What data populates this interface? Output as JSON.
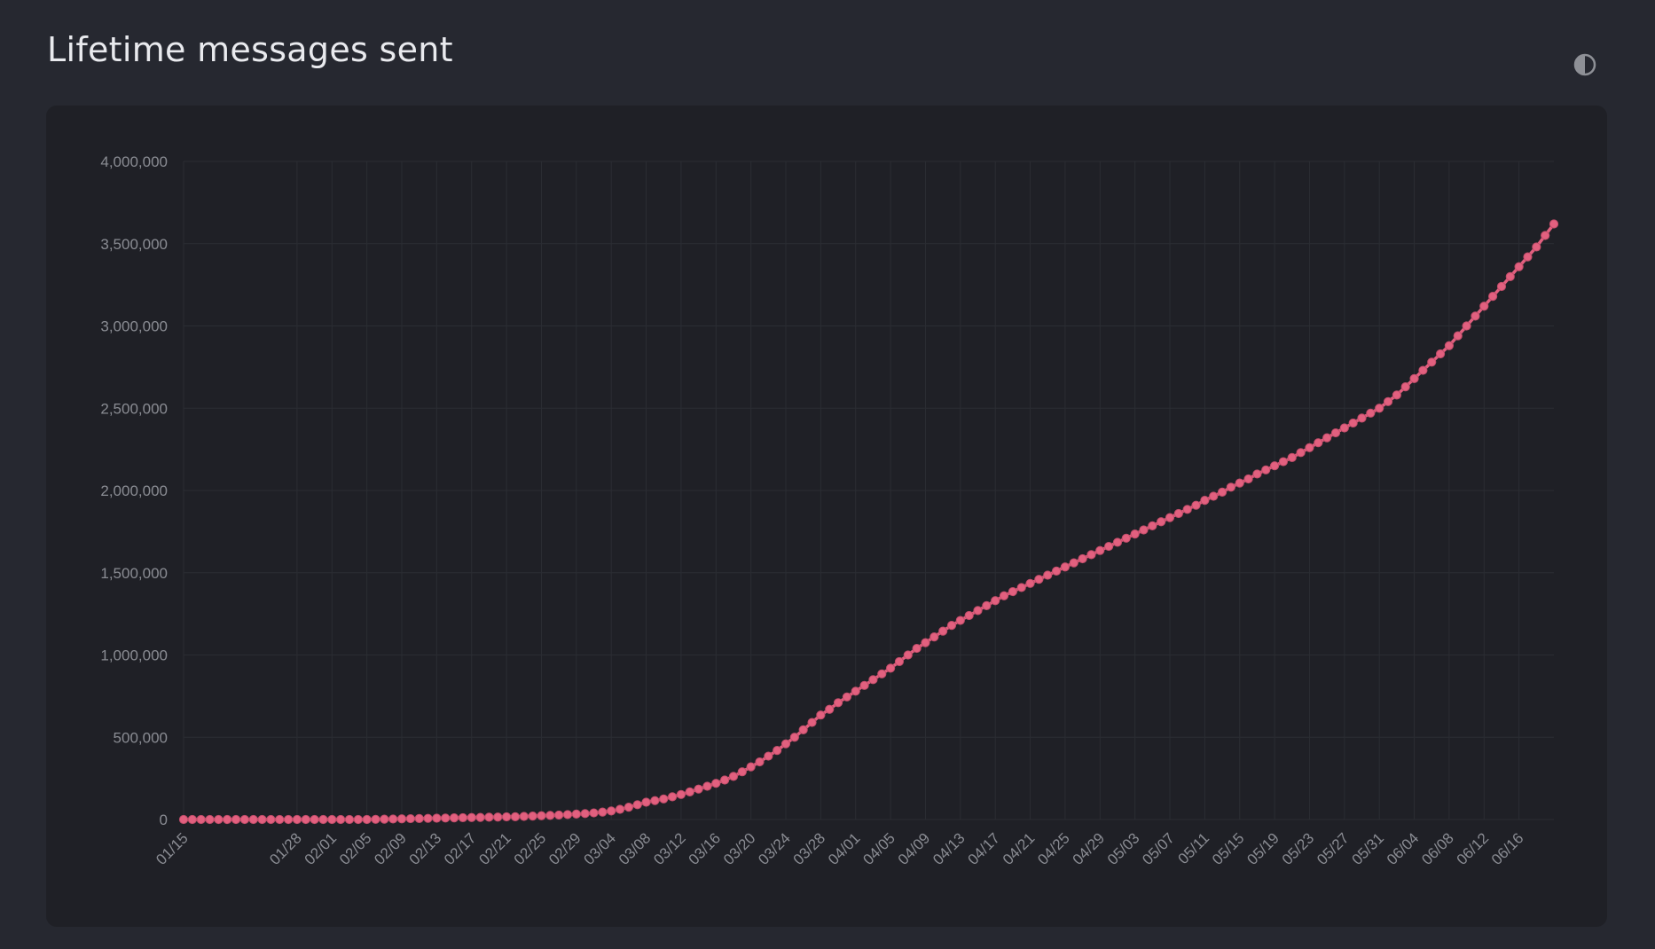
{
  "page": {
    "title": "Lifetime messages sent"
  },
  "theme_toggle": {
    "icon": "contrast-icon"
  },
  "colors": {
    "background": "#262830",
    "panel": "#1f2026",
    "series": "#e2607f",
    "grid": "#2b2d33",
    "tick_text": "#8a8c93",
    "title": "#e9eaee"
  },
  "chart_data": {
    "type": "line",
    "title": "Lifetime messages sent",
    "xlabel": "",
    "ylabel": "",
    "ylim": [
      0,
      4000000
    ],
    "y_ticks": [
      0,
      500000,
      1000000,
      1500000,
      2000000,
      2500000,
      3000000,
      3500000,
      4000000
    ],
    "y_tick_labels": [
      "0",
      "500,000",
      "1,000,000",
      "1,500,000",
      "2,000,000",
      "2,500,000",
      "3,000,000",
      "3,500,000",
      "4,000,000"
    ],
    "grid": true,
    "legend": "none",
    "x_dates": [
      "01/15",
      "01/16",
      "01/17",
      "01/18",
      "01/19",
      "01/20",
      "01/21",
      "01/22",
      "01/23",
      "01/24",
      "01/25",
      "01/26",
      "01/27",
      "01/28",
      "01/29",
      "01/30",
      "01/31",
      "02/01",
      "02/02",
      "02/03",
      "02/04",
      "02/05",
      "02/06",
      "02/07",
      "02/08",
      "02/09",
      "02/10",
      "02/11",
      "02/12",
      "02/13",
      "02/14",
      "02/15",
      "02/16",
      "02/17",
      "02/18",
      "02/19",
      "02/20",
      "02/21",
      "02/22",
      "02/23",
      "02/24",
      "02/25",
      "02/26",
      "02/27",
      "02/28",
      "02/29",
      "03/01",
      "03/02",
      "03/03",
      "03/04",
      "03/05",
      "03/06",
      "03/07",
      "03/08",
      "03/09",
      "03/10",
      "03/11",
      "03/12",
      "03/13",
      "03/14",
      "03/15",
      "03/16",
      "03/17",
      "03/18",
      "03/19",
      "03/20",
      "03/21",
      "03/22",
      "03/23",
      "03/24",
      "03/25",
      "03/26",
      "03/27",
      "03/28",
      "03/29",
      "03/30",
      "03/31",
      "04/01",
      "04/02",
      "04/03",
      "04/04",
      "04/05",
      "04/06",
      "04/07",
      "04/08",
      "04/09",
      "04/10",
      "04/11",
      "04/12",
      "04/13",
      "04/14",
      "04/15",
      "04/16",
      "04/17",
      "04/18",
      "04/19",
      "04/20",
      "04/21",
      "04/22",
      "04/23",
      "04/24",
      "04/25",
      "04/26",
      "04/27",
      "04/28",
      "04/29",
      "04/30",
      "05/01",
      "05/02",
      "05/03",
      "05/04",
      "05/05",
      "05/06",
      "05/07",
      "05/08",
      "05/09",
      "05/10",
      "05/11",
      "05/12",
      "05/13",
      "05/14",
      "05/15",
      "05/16",
      "05/17",
      "05/18",
      "05/19",
      "05/20",
      "05/21",
      "05/22",
      "05/23",
      "05/24",
      "05/25",
      "05/26",
      "05/27",
      "05/28",
      "05/29",
      "05/30",
      "05/31",
      "06/01",
      "06/02",
      "06/03",
      "06/04",
      "06/05",
      "06/06",
      "06/07",
      "06/08",
      "06/09",
      "06/10",
      "06/11",
      "06/12",
      "06/13",
      "06/14",
      "06/15",
      "06/16",
      "06/17",
      "06/18",
      "06/19",
      "06/20"
    ],
    "x_tick_labels": [
      "01/15",
      "01/28",
      "02/01",
      "02/05",
      "02/09",
      "02/13",
      "02/17",
      "02/21",
      "02/25",
      "02/29",
      "03/04",
      "03/08",
      "03/12",
      "03/16",
      "03/20",
      "03/24",
      "03/28",
      "04/01",
      "04/05",
      "04/09",
      "04/13",
      "04/17",
      "04/21",
      "04/25",
      "04/29",
      "05/03",
      "05/07",
      "05/11",
      "05/15",
      "05/19",
      "05/23",
      "05/27",
      "05/31",
      "06/04",
      "06/08",
      "06/12",
      "06/16"
    ],
    "series": [
      {
        "color": "#e2607f",
        "values": [
          0,
          0,
          0,
          0,
          0,
          0,
          0,
          0,
          0,
          0,
          0,
          0,
          0,
          0,
          0,
          0,
          0,
          0,
          0,
          0,
          0,
          0,
          1000,
          2000,
          3000,
          4000,
          5000,
          6000,
          7000,
          8000,
          9000,
          10000,
          11000,
          12000,
          13000,
          14000,
          15000,
          16000,
          17000,
          19000,
          21000,
          23000,
          25000,
          27000,
          30000,
          33000,
          36000,
          40000,
          45000,
          52000,
          62000,
          75000,
          90000,
          105000,
          115000,
          125000,
          138000,
          152000,
          168000,
          185000,
          202000,
          220000,
          240000,
          262000,
          290000,
          320000,
          350000,
          385000,
          420000,
          460000,
          500000,
          545000,
          590000,
          635000,
          670000,
          710000,
          745000,
          780000,
          815000,
          850000,
          885000,
          920000,
          960000,
          1000000,
          1040000,
          1075000,
          1110000,
          1145000,
          1180000,
          1210000,
          1240000,
          1270000,
          1300000,
          1330000,
          1360000,
          1385000,
          1410000,
          1435000,
          1460000,
          1485000,
          1510000,
          1535000,
          1560000,
          1585000,
          1610000,
          1635000,
          1660000,
          1685000,
          1710000,
          1735000,
          1760000,
          1785000,
          1810000,
          1835000,
          1860000,
          1885000,
          1910000,
          1940000,
          1965000,
          1990000,
          2020000,
          2045000,
          2070000,
          2100000,
          2125000,
          2150000,
          2175000,
          2200000,
          2230000,
          2260000,
          2290000,
          2320000,
          2350000,
          2380000,
          2410000,
          2440000,
          2470000,
          2500000,
          2540000,
          2580000,
          2630000,
          2680000,
          2730000,
          2780000,
          2830000,
          2880000,
          2940000,
          3000000,
          3060000,
          3120000,
          3180000,
          3240000,
          3300000,
          3360000,
          3420000,
          3480000,
          3550000,
          3620000
        ]
      }
    ]
  }
}
